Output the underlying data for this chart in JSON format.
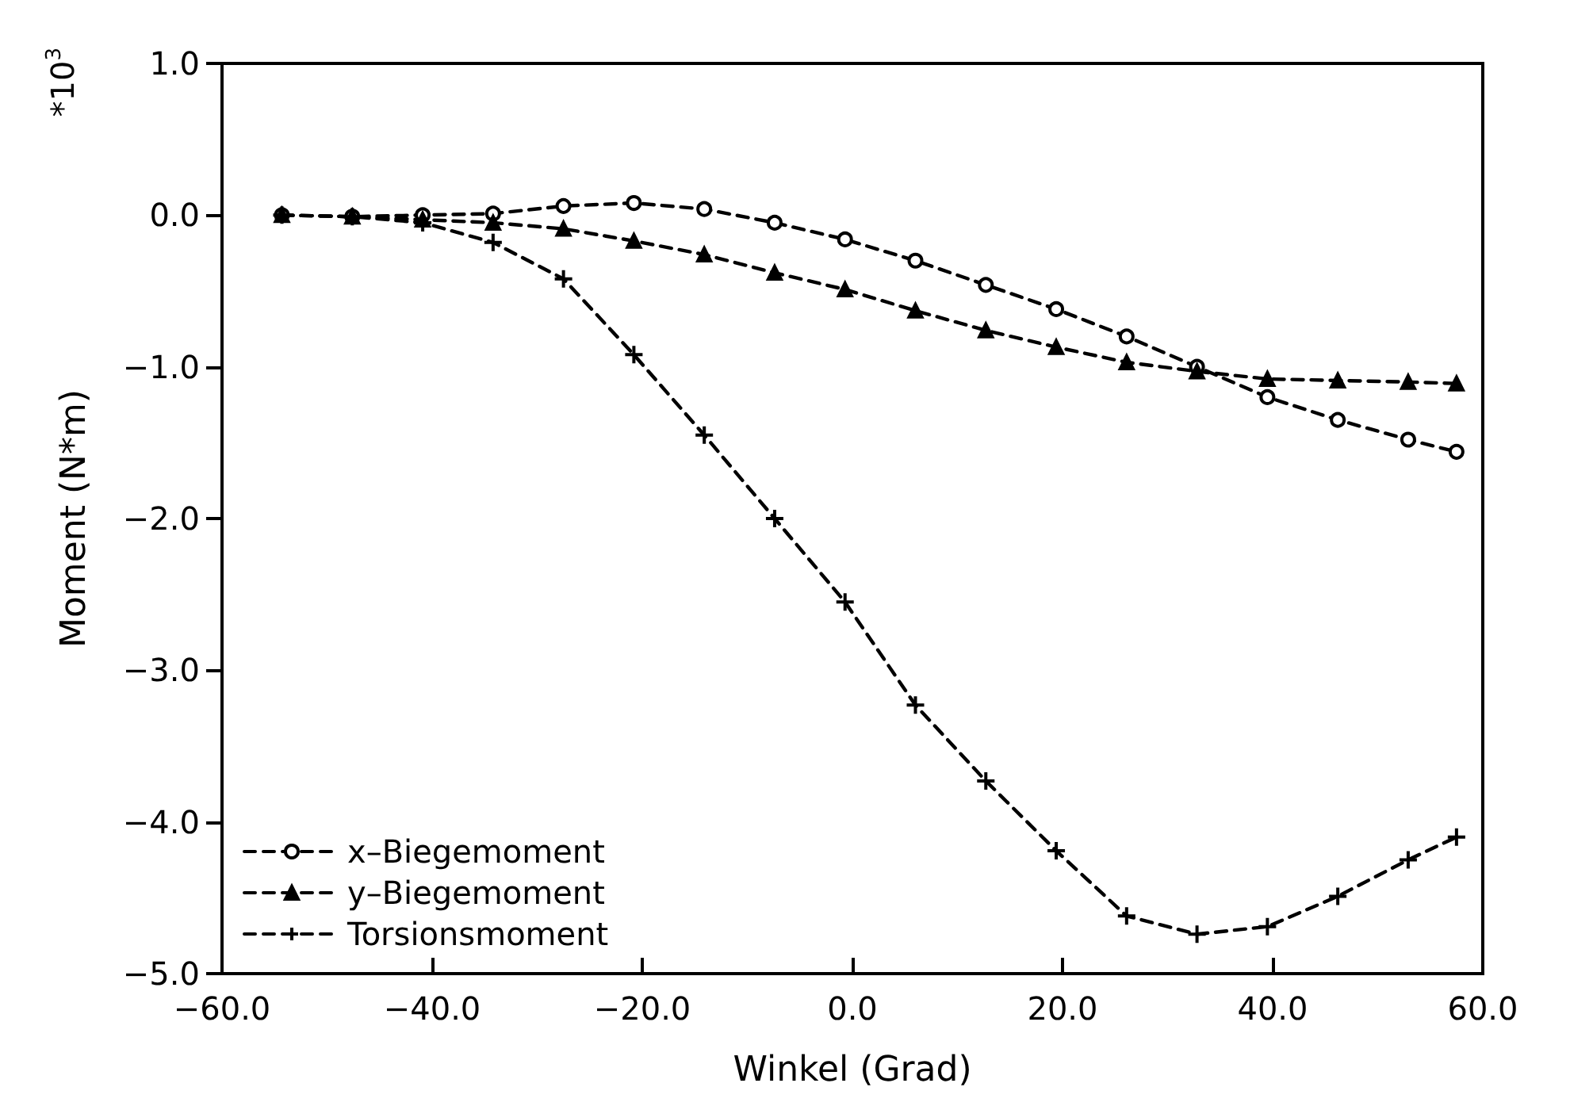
{
  "chart_data": {
    "type": "line",
    "xlabel": "Winkel (Grad)",
    "ylabel": "Moment (N*m)",
    "annotations": [
      "*10$^{3}$"
    ],
    "x": [
      -54.3,
      -47.6,
      -40.9,
      -34.2,
      -27.5,
      -20.8,
      -14.1,
      -7.4,
      -0.7,
      6.0,
      12.7,
      19.4,
      26.1,
      32.8,
      39.5,
      46.2,
      52.9,
      57.5
    ],
    "series": [
      {
        "name": "x–Biegemoment",
        "color": "#000000",
        "marker": "circle",
        "values": [
          0,
          -0.01,
          0.0,
          0.01,
          0.06,
          0.08,
          0.04,
          -0.05,
          -0.16,
          -0.3,
          -0.46,
          -0.62,
          -0.8,
          -1.0,
          -1.2,
          -1.35,
          -1.48,
          -1.56
        ]
      },
      {
        "name": "y–Biegemoment",
        "color": "#000000",
        "marker": "triangle",
        "values": [
          0,
          -0.01,
          -0.03,
          -0.05,
          -0.09,
          -0.17,
          -0.26,
          -0.38,
          -0.49,
          -0.63,
          -0.76,
          -0.87,
          -0.97,
          -1.03,
          -1.08,
          -1.09,
          -1.1,
          -1.11
        ]
      },
      {
        "name": "Torsionsmoment",
        "color": "#000000",
        "marker": "cross",
        "values": [
          0,
          -0.01,
          -0.05,
          -0.18,
          -0.42,
          -0.92,
          -1.45,
          -2.0,
          -2.55,
          -3.23,
          -3.73,
          -4.19,
          -4.62,
          -4.74,
          -4.69,
          -4.49,
          -4.25,
          -4.1
        ]
      }
    ],
    "xlim": [
      -60,
      60
    ],
    "xticks": [
      {
        "value": -60,
        "label": "−60.0"
      },
      {
        "value": -40,
        "label": "−40.0"
      },
      {
        "value": -20,
        "label": "−20.0"
      },
      {
        "value": 0,
        "label": "0.0"
      },
      {
        "value": 20,
        "label": "20.0"
      },
      {
        "value": 40,
        "label": "40.0"
      },
      {
        "value": 60,
        "label": "60.0"
      }
    ],
    "ylim": [
      -5,
      1
    ],
    "yticks": [
      {
        "value": -5,
        "label": "−5.0"
      },
      {
        "value": -4,
        "label": "−4.0"
      },
      {
        "value": -3,
        "label": "−3.0"
      },
      {
        "value": -2,
        "label": "−2.0"
      },
      {
        "value": -1,
        "label": "−1.0"
      },
      {
        "value": 0,
        "label": "0.0"
      },
      {
        "value": 1,
        "label": "1.0"
      }
    ],
    "line_style": "dashed",
    "legend": "bottom left"
  }
}
